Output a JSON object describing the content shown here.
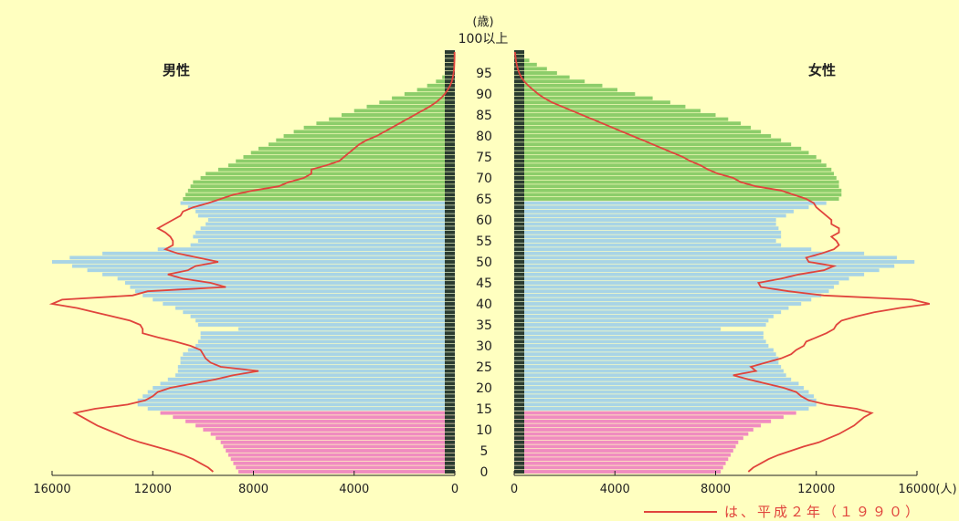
{
  "chart_data": {
    "type": "bar",
    "orientation": "horizontal-pyramid",
    "age_axis_label": "(歳)",
    "top_age_label": "100以上",
    "age_ticks": [
      0,
      5,
      10,
      15,
      20,
      25,
      30,
      35,
      40,
      45,
      50,
      55,
      60,
      65,
      70,
      75,
      80,
      85,
      90,
      95
    ],
    "x_ticks": [
      16000,
      12000,
      8000,
      4000,
      0
    ],
    "x_unit": "(人)",
    "xlim": [
      0,
      16000
    ],
    "left_label": "男性",
    "right_label": "女性",
    "age_groups": [
      {
        "name": "0-14",
        "color": "#f08cc0",
        "from": 0,
        "to": 14
      },
      {
        "name": "15-64",
        "color": "#a8d4e6",
        "from": 15,
        "to": 64
      },
      {
        "name": "65+",
        "color": "#8ccd6a",
        "from": 65,
        "to": 100
      }
    ],
    "tick_strip_color": "#2a3b30",
    "background_color": "#ffffc0",
    "male_current": {
      "0": 8600,
      "1": 8700,
      "2": 8800,
      "3": 8900,
      "4": 9000,
      "5": 9100,
      "6": 9200,
      "7": 9300,
      "8": 9500,
      "9": 9700,
      "10": 10000,
      "11": 10300,
      "12": 10700,
      "13": 11200,
      "14": 11700,
      "15": 12200,
      "16": 12600,
      "17": 12600,
      "18": 12400,
      "19": 12200,
      "20": 12000,
      "21": 11700,
      "22": 11400,
      "23": 11100,
      "24": 11000,
      "25": 11000,
      "26": 10900,
      "27": 10900,
      "28": 10800,
      "29": 10600,
      "30": 10300,
      "31": 10200,
      "32": 10100,
      "33": 10100,
      "34": 8600,
      "35": 10200,
      "36": 10300,
      "37": 10500,
      "38": 10800,
      "39": 11100,
      "40": 11600,
      "41": 12000,
      "42": 12400,
      "43": 12700,
      "44": 12900,
      "45": 13100,
      "46": 13400,
      "47": 14000,
      "48": 14600,
      "49": 15200,
      "50": 16000,
      "51": 15300,
      "52": 14000,
      "53": 11800,
      "54": 10500,
      "55": 10200,
      "56": 10400,
      "57": 10300,
      "58": 10100,
      "59": 9900,
      "60": 9800,
      "61": 10200,
      "62": 10300,
      "63": 10600,
      "64": 10900,
      "65": 10800,
      "66": 10700,
      "67": 10600,
      "68": 10500,
      "69": 10400,
      "70": 10100,
      "71": 9900,
      "72": 9400,
      "73": 9000,
      "74": 8700,
      "75": 8400,
      "76": 8100,
      "77": 7800,
      "78": 7400,
      "79": 7100,
      "80": 6800,
      "81": 6400,
      "82": 6000,
      "83": 5500,
      "84": 5000,
      "85": 4500,
      "86": 4000,
      "87": 3500,
      "88": 3000,
      "89": 2500,
      "90": 2000,
      "91": 1500,
      "92": 1100,
      "93": 750,
      "94": 500,
      "95": 350,
      "96": 250,
      "97": 150,
      "98": 100,
      "99": 70,
      "100": 50
    },
    "female_current": {
      "0": 8200,
      "1": 8300,
      "2": 8400,
      "3": 8500,
      "4": 8600,
      "5": 8700,
      "6": 8800,
      "7": 8900,
      "8": 9100,
      "9": 9300,
      "10": 9500,
      "11": 9800,
      "12": 10200,
      "13": 10700,
      "14": 11200,
      "15": 11700,
      "16": 12000,
      "17": 12000,
      "18": 11900,
      "19": 11700,
      "20": 11500,
      "21": 11300,
      "22": 11000,
      "23": 10800,
      "24": 10700,
      "25": 10600,
      "26": 10500,
      "27": 10500,
      "28": 10400,
      "29": 10300,
      "30": 10100,
      "31": 10000,
      "32": 9900,
      "33": 9900,
      "34": 8200,
      "35": 10000,
      "36": 10100,
      "37": 10300,
      "38": 10600,
      "39": 10900,
      "40": 11400,
      "41": 11800,
      "42": 12200,
      "43": 12500,
      "44": 12700,
      "45": 12900,
      "46": 13300,
      "47": 13900,
      "48": 14500,
      "49": 15100,
      "50": 15900,
      "51": 15200,
      "52": 13900,
      "53": 11800,
      "54": 10600,
      "55": 10400,
      "56": 10600,
      "57": 10600,
      "58": 10500,
      "59": 10400,
      "60": 10400,
      "61": 10800,
      "62": 11100,
      "63": 11700,
      "64": 12400,
      "65": 12900,
      "66": 13000,
      "67": 13000,
      "68": 12900,
      "69": 12900,
      "70": 12800,
      "71": 12700,
      "72": 12600,
      "73": 12400,
      "74": 12200,
      "75": 12000,
      "76": 11700,
      "77": 11400,
      "78": 11000,
      "79": 10600,
      "80": 10200,
      "81": 9800,
      "82": 9400,
      "83": 9000,
      "84": 8500,
      "85": 8000,
      "86": 7400,
      "87": 6800,
      "88": 6200,
      "89": 5500,
      "90": 4800,
      "91": 4100,
      "92": 3500,
      "93": 2800,
      "94": 2200,
      "95": 1700,
      "96": 1300,
      "97": 900,
      "98": 600,
      "99": 400,
      "100": 300
    },
    "male_1990_line": {
      "0": 9600,
      "1": 9800,
      "2": 10100,
      "3": 10400,
      "4": 10800,
      "5": 11300,
      "6": 11900,
      "7": 12500,
      "8": 13000,
      "9": 13400,
      "10": 13800,
      "11": 14200,
      "12": 14500,
      "13": 14800,
      "14": 15100,
      "15": 14300,
      "16": 13000,
      "17": 12300,
      "18": 12000,
      "19": 11800,
      "20": 11300,
      "21": 10400,
      "22": 9500,
      "23": 8800,
      "24": 7800,
      "25": 9300,
      "26": 9700,
      "27": 9900,
      "28": 10000,
      "29": 10100,
      "30": 10500,
      "31": 11100,
      "32": 11800,
      "33": 12400,
      "34": 12400,
      "35": 12500,
      "36": 12900,
      "37": 13600,
      "38": 14300,
      "39": 15000,
      "40": 16000,
      "41": 15600,
      "42": 12800,
      "43": 12200,
      "44": 9100,
      "45": 9700,
      "46": 10800,
      "47": 11400,
      "48": 10600,
      "49": 10300,
      "50": 9400,
      "51": 10200,
      "52": 11000,
      "53": 11500,
      "54": 11200,
      "55": 11200,
      "56": 11300,
      "57": 11500,
      "58": 11800,
      "59": 11500,
      "60": 11200,
      "61": 10900,
      "62": 10800,
      "63": 10400,
      "64": 9800,
      "65": 9300,
      "66": 8800,
      "67": 8000,
      "68": 7000,
      "69": 6600,
      "70": 6000,
      "71": 5700,
      "72": 5700,
      "73": 5100,
      "74": 4600,
      "75": 4400,
      "76": 4200,
      "77": 4000,
      "78": 3800,
      "79": 3500,
      "80": 3100,
      "81": 2800,
      "82": 2500,
      "83": 2200,
      "84": 1900,
      "85": 1600,
      "86": 1300,
      "87": 1000,
      "88": 750,
      "89": 550,
      "90": 400,
      "91": 280,
      "92": 190,
      "93": 120,
      "94": 80,
      "95": 50,
      "96": 30,
      "97": 20,
      "98": 15,
      "99": 10,
      "100": 10
    },
    "female_1990_line": {
      "0": 9300,
      "1": 9500,
      "2": 9800,
      "3": 10100,
      "4": 10500,
      "5": 11000,
      "6": 11500,
      "7": 12100,
      "8": 12500,
      "9": 12900,
      "10": 13200,
      "11": 13500,
      "12": 13700,
      "13": 13900,
      "14": 14200,
      "15": 13600,
      "16": 12400,
      "17": 11700,
      "18": 11400,
      "19": 11200,
      "20": 10700,
      "21": 10000,
      "22": 9300,
      "23": 8700,
      "24": 9600,
      "25": 9400,
      "26": 10000,
      "27": 10600,
      "28": 11000,
      "29": 11200,
      "30": 11500,
      "31": 11600,
      "32": 12000,
      "33": 12400,
      "34": 12700,
      "35": 12800,
      "36": 13000,
      "37": 13600,
      "38": 14300,
      "39": 15300,
      "40": 16500,
      "41": 15800,
      "42": 12300,
      "43": 10900,
      "44": 9800,
      "45": 9700,
      "46": 10600,
      "47": 11300,
      "48": 12300,
      "49": 12700,
      "50": 11700,
      "51": 11600,
      "52": 12200,
      "53": 12700,
      "54": 12900,
      "55": 12800,
      "56": 12600,
      "57": 12900,
      "58": 12900,
      "59": 12600,
      "60": 12600,
      "61": 12400,
      "62": 12200,
      "63": 12000,
      "64": 11900,
      "65": 11600,
      "66": 11100,
      "67": 10600,
      "68": 9600,
      "69": 9000,
      "70": 8700,
      "71": 8100,
      "72": 7700,
      "73": 7400,
      "74": 7000,
      "75": 6700,
      "76": 6300,
      "77": 5900,
      "78": 5500,
      "79": 5100,
      "80": 4700,
      "81": 4300,
      "82": 3900,
      "83": 3500,
      "84": 3100,
      "85": 2700,
      "86": 2300,
      "87": 1900,
      "88": 1500,
      "89": 1200,
      "90": 950,
      "91": 750,
      "92": 560,
      "93": 400,
      "94": 280,
      "95": 200,
      "96": 140,
      "97": 100,
      "98": 70,
      "99": 50,
      "100": 30
    },
    "legend": {
      "text": "は、平成２年（１９９０）",
      "line_color": "#e0443c"
    }
  }
}
